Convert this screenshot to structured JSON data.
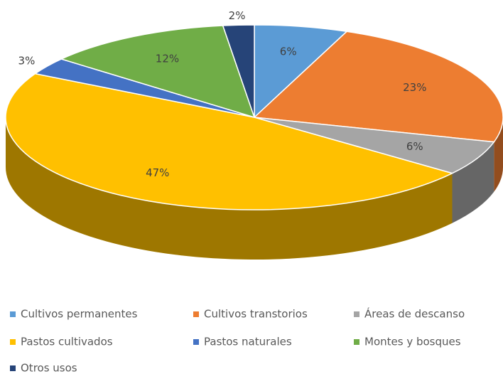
{
  "chart_data": {
    "type": "pie",
    "categories": [
      "Cultivos permanentes",
      "Cultivos transtorios",
      "Áreas de descanso",
      "Pastos cultivados",
      "Pastos naturales",
      "Montes y bosques",
      "Otros usos"
    ],
    "values": [
      6,
      23,
      6,
      47,
      3,
      12,
      2
    ],
    "value_labels": [
      "6%",
      "23%",
      "6%",
      "47%",
      "3%",
      "12%",
      "2%"
    ],
    "colors": [
      "#5b9bd5",
      "#ed7d31",
      "#a5a5a5",
      "#ffc000",
      "#4472c4",
      "#70ad47",
      "#264478"
    ],
    "legend": "bottom"
  }
}
